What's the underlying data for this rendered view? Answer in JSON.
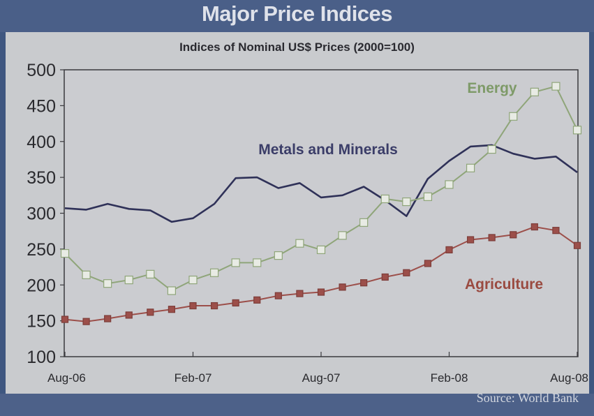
{
  "header": {
    "title": "Major Price Indices",
    "subtitle": "Indices of Nominal US$ Prices  (2000=100)"
  },
  "footer": {
    "source": "Source: World Bank"
  },
  "chart_data": {
    "type": "line",
    "title": "Major Price Indices",
    "subtitle": "Indices of Nominal US$ Prices (2000=100)",
    "xlabel": "",
    "ylabel": "",
    "ylim": [
      100,
      500
    ],
    "yticks": [
      100,
      150,
      200,
      250,
      300,
      350,
      400,
      450,
      500
    ],
    "x": [
      "Aug-06",
      "Sep-06",
      "Oct-06",
      "Nov-06",
      "Dec-06",
      "Jan-07",
      "Feb-07",
      "Mar-07",
      "Apr-07",
      "May-07",
      "Jun-07",
      "Jul-07",
      "Aug-07",
      "Sep-07",
      "Oct-07",
      "Nov-07",
      "Dec-07",
      "Jan-08",
      "Feb-08",
      "Mar-08",
      "Apr-08",
      "May-08",
      "Jun-08",
      "Jul-08",
      "Aug-08"
    ],
    "xticks": [
      "Aug-06",
      "Feb-07",
      "Aug-07",
      "Feb-08",
      "Aug-08"
    ],
    "grid": false,
    "series": [
      {
        "name": "Metals and Minerals",
        "color": "#2f3158",
        "marker": "none",
        "values": [
          307,
          305,
          313,
          306,
          304,
          288,
          293,
          313,
          349,
          350,
          335,
          342,
          322,
          325,
          337,
          318,
          296,
          348,
          373,
          393,
          395,
          383,
          376,
          379,
          357
        ]
      },
      {
        "name": "Energy",
        "color": "#8fa579",
        "marker": "open-square",
        "values": [
          244,
          214,
          202,
          207,
          215,
          192,
          207,
          217,
          231,
          231,
          241,
          258,
          249,
          269,
          287,
          320,
          316,
          323,
          340,
          363,
          389,
          435,
          469,
          477,
          416
        ]
      },
      {
        "name": "Agriculture",
        "color": "#9c4f4a",
        "marker": "filled-square",
        "values": [
          152,
          149,
          153,
          158,
          162,
          166,
          171,
          171,
          175,
          179,
          185,
          188,
          190,
          197,
          203,
          211,
          217,
          230,
          249,
          263,
          266,
          270,
          281,
          276,
          255
        ]
      }
    ],
    "annotations": [
      {
        "text": "Energy",
        "series": "Energy",
        "position": "top-right"
      },
      {
        "text": "Metals and Minerals",
        "series": "Metals and Minerals",
        "position": "upper-middle"
      },
      {
        "text": "Agriculture",
        "series": "Agriculture",
        "position": "lower-right"
      }
    ],
    "legend": "none"
  }
}
